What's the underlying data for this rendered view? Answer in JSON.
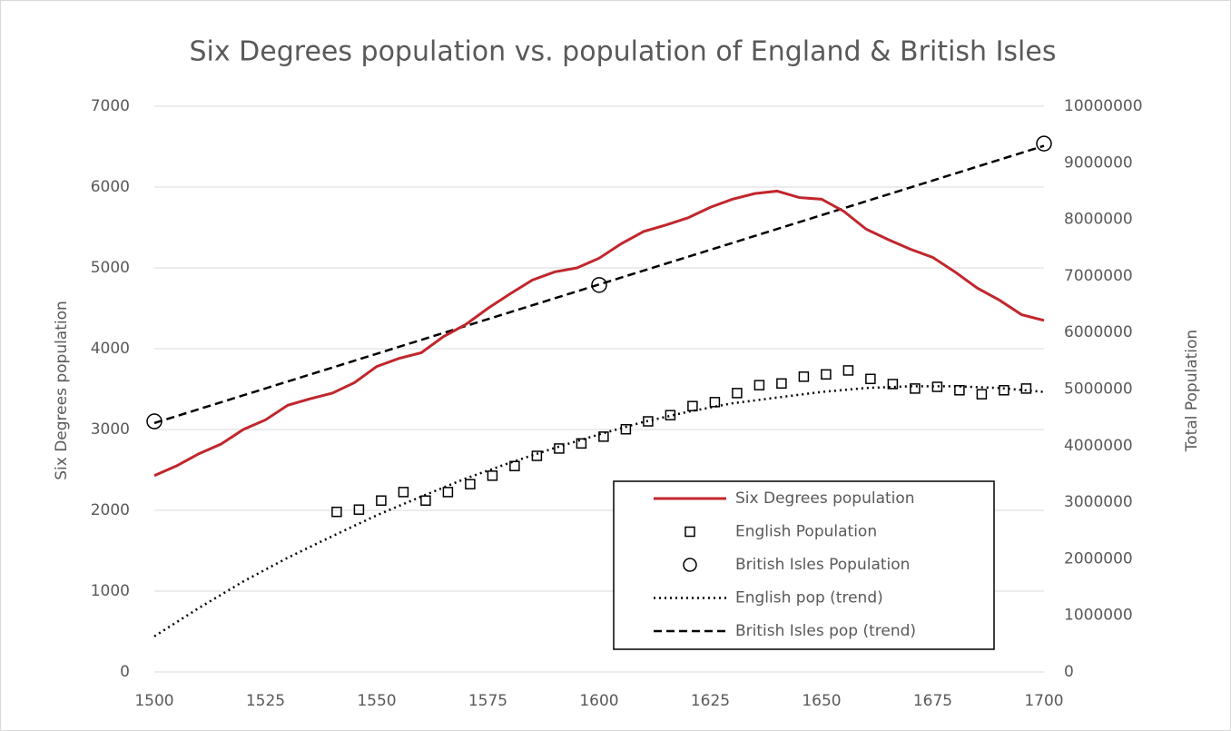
{
  "chart_data": {
    "type": "line",
    "title": "Six Degrees population vs. population of England & British Isles",
    "y_label": "Six Degrees population",
    "y2_label": "Total Population",
    "xlim": [
      1500,
      1700
    ],
    "xticks": [
      1500,
      1525,
      1550,
      1575,
      1600,
      1625,
      1650,
      1675,
      1700
    ],
    "ylim": [
      0,
      7000
    ],
    "yticks": [
      0,
      1000,
      2000,
      3000,
      4000,
      5000,
      6000,
      7000
    ],
    "y2lim": [
      0,
      10000000
    ],
    "y2ticks": [
      0,
      1000000,
      2000000,
      3000000,
      4000000,
      5000000,
      6000000,
      7000000,
      8000000,
      9000000,
      10000000
    ],
    "grid": true,
    "legend": "lower right",
    "series": [
      {
        "name": "Six Degrees population",
        "color": "#c0272d",
        "style": "solid",
        "axis": "y",
        "x": [
          1500,
          1505,
          1510,
          1515,
          1520,
          1525,
          1530,
          1535,
          1540,
          1545,
          1550,
          1555,
          1560,
          1565,
          1570,
          1575,
          1580,
          1585,
          1590,
          1595,
          1600,
          1605,
          1610,
          1615,
          1620,
          1625,
          1630,
          1635,
          1640,
          1645,
          1650,
          1655,
          1660,
          1665,
          1670,
          1675,
          1680,
          1685,
          1690,
          1695,
          1700
        ],
        "values": [
          2430,
          2550,
          2700,
          2820,
          3000,
          3120,
          3300,
          3380,
          3450,
          3580,
          3780,
          3880,
          3950,
          4150,
          4300,
          4500,
          4680,
          4850,
          4950,
          5000,
          5120,
          5300,
          5450,
          5530,
          5620,
          5750,
          5850,
          5920,
          5950,
          5870,
          5850,
          5700,
          5480,
          5350,
          5230,
          5130,
          4950,
          4750,
          4600,
          4420,
          4350
        ]
      },
      {
        "name": "English Population",
        "color": "#000000",
        "style": "square",
        "axis": "y2",
        "x": [
          1541,
          1546,
          1551,
          1556,
          1561,
          1566,
          1571,
          1576,
          1581,
          1586,
          1591,
          1596,
          1601,
          1606,
          1611,
          1616,
          1621,
          1626,
          1631,
          1636,
          1641,
          1646,
          1651,
          1656,
          1661,
          1666,
          1671,
          1676,
          1681,
          1686,
          1691,
          1696
        ],
        "values": [
          2830000,
          2870000,
          3030000,
          3180000,
          3030000,
          3180000,
          3320000,
          3470000,
          3640000,
          3820000,
          3950000,
          4040000,
          4160000,
          4290000,
          4430000,
          4540000,
          4700000,
          4770000,
          4930000,
          5070000,
          5100000,
          5220000,
          5260000,
          5330000,
          5180000,
          5090000,
          5010000,
          5040000,
          4980000,
          4910000,
          4980000,
          5010000
        ]
      },
      {
        "name": "British Isles Population",
        "color": "#000000",
        "style": "circle",
        "axis": "y2",
        "x": [
          1500,
          1600,
          1700
        ],
        "values": [
          4430000,
          6840000,
          9340000
        ]
      },
      {
        "name": "English pop (trend)",
        "color": "#000000",
        "style": "dotted",
        "axis": "y2",
        "x": [
          1500,
          1510,
          1520,
          1530,
          1540,
          1550,
          1560,
          1570,
          1580,
          1590,
          1600,
          1610,
          1620,
          1630,
          1640,
          1650,
          1660,
          1670,
          1680,
          1690,
          1700
        ],
        "values": [
          630000,
          1130000,
          1600000,
          2020000,
          2400000,
          2770000,
          3100000,
          3420000,
          3700000,
          3960000,
          4200000,
          4420000,
          4600000,
          4750000,
          4850000,
          4950000,
          5020000,
          5050000,
          5050000,
          5020000,
          4950000
        ]
      },
      {
        "name": "British Isles pop (trend)",
        "color": "#000000",
        "style": "dashed",
        "axis": "y2",
        "x": [
          1500,
          1700
        ],
        "values": [
          4400000,
          9300000
        ]
      }
    ]
  }
}
